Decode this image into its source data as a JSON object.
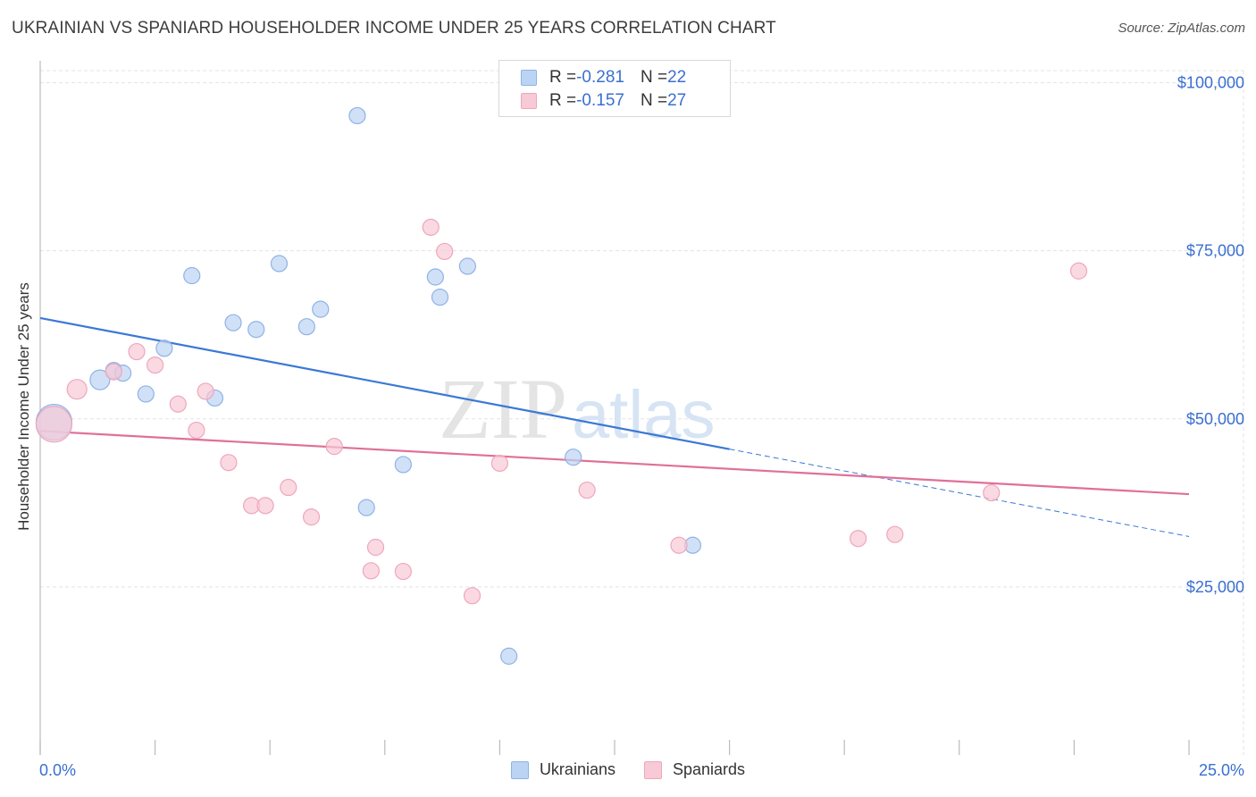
{
  "title": "UKRAINIAN VS SPANIARD HOUSEHOLDER INCOME UNDER 25 YEARS CORRELATION CHART",
  "source": "Source: ZipAtlas.com",
  "watermark": {
    "zip": "ZIP",
    "atlas": "atlas"
  },
  "colors": {
    "blue_fill": "#bcd4f4",
    "blue_stroke": "#8fb2e6",
    "blue_line": "#3a78d6",
    "pink_fill": "#f8c9d6",
    "pink_stroke": "#eea7bb",
    "pink_line": "#e07098",
    "grid": "#e3e3e3",
    "axis_text": "#3a6fd0"
  },
  "stats": [
    {
      "r_label": "R = ",
      "r_value": "-0.281",
      "n_label": "N = ",
      "n_value": "22"
    },
    {
      "r_label": "R = ",
      "r_value": "-0.157",
      "n_label": "N = ",
      "n_value": "27"
    }
  ],
  "chart_data": {
    "type": "scatter",
    "title": "UKRAINIAN VS SPANIARD HOUSEHOLDER INCOME UNDER 25 YEARS CORRELATION CHART",
    "xlabel": "",
    "ylabel": "Householder Income Under 25 years",
    "xlim": [
      0,
      25
    ],
    "ylim": [
      0,
      103000
    ],
    "x_tick_labels": [
      "0.0%",
      "25.0%"
    ],
    "y_ticks": [
      25000,
      50000,
      75000,
      100000
    ],
    "y_tick_labels": [
      "$25,000",
      "$50,000",
      "$75,000",
      "$100,000"
    ],
    "grid": true,
    "legend_position": "bottom-center",
    "series": [
      {
        "name": "Ukrainians",
        "points": [
          [
            0.3,
            49500,
            20
          ],
          [
            1.3,
            55800,
            11
          ],
          [
            1.6,
            57200,
            9
          ],
          [
            1.8,
            56800,
            9
          ],
          [
            2.3,
            53700,
            9
          ],
          [
            2.7,
            60500,
            9
          ],
          [
            3.3,
            71300,
            9
          ],
          [
            3.8,
            53100,
            9
          ],
          [
            4.2,
            64300,
            9
          ],
          [
            4.7,
            63300,
            9
          ],
          [
            5.2,
            73100,
            9
          ],
          [
            5.8,
            63700,
            9
          ],
          [
            6.1,
            66300,
            9
          ],
          [
            6.9,
            95100,
            9
          ],
          [
            7.1,
            36800,
            9
          ],
          [
            7.9,
            43200,
            9
          ],
          [
            8.6,
            71100,
            9
          ],
          [
            8.7,
            68100,
            9
          ],
          [
            9.3,
            72700,
            9
          ],
          [
            10.2,
            14700,
            9
          ],
          [
            11.6,
            44300,
            9
          ],
          [
            14.2,
            31200,
            9
          ]
        ],
        "trend": {
          "x": [
            0,
            15
          ],
          "y": [
            65000,
            45500
          ],
          "dashed_extension": {
            "x": [
              15,
              25
            ],
            "y": [
              45500,
              32500
            ]
          }
        }
      },
      {
        "name": "Spaniards",
        "points": [
          [
            0.3,
            49200,
            20
          ],
          [
            0.8,
            54400,
            11
          ],
          [
            1.6,
            57000,
            9
          ],
          [
            2.1,
            60000,
            9
          ],
          [
            2.5,
            58000,
            9
          ],
          [
            3.0,
            52200,
            9
          ],
          [
            3.4,
            48300,
            9
          ],
          [
            3.6,
            54100,
            9
          ],
          [
            4.1,
            43500,
            9
          ],
          [
            4.6,
            37100,
            9
          ],
          [
            4.9,
            37100,
            9
          ],
          [
            5.4,
            39800,
            9
          ],
          [
            5.9,
            35400,
            9
          ],
          [
            6.4,
            45900,
            9
          ],
          [
            7.2,
            27400,
            9
          ],
          [
            7.3,
            30900,
            9
          ],
          [
            7.9,
            27300,
            9
          ],
          [
            8.5,
            78500,
            9
          ],
          [
            8.8,
            74900,
            9
          ],
          [
            9.4,
            23700,
            9
          ],
          [
            10.0,
            43400,
            9
          ],
          [
            11.9,
            39400,
            9
          ],
          [
            13.9,
            31200,
            9
          ],
          [
            17.8,
            32200,
            9
          ],
          [
            18.6,
            32800,
            9
          ],
          [
            20.7,
            39000,
            9
          ],
          [
            22.6,
            72000,
            9
          ]
        ],
        "trend": {
          "x": [
            0,
            25
          ],
          "y": [
            48200,
            38800
          ]
        }
      }
    ]
  }
}
